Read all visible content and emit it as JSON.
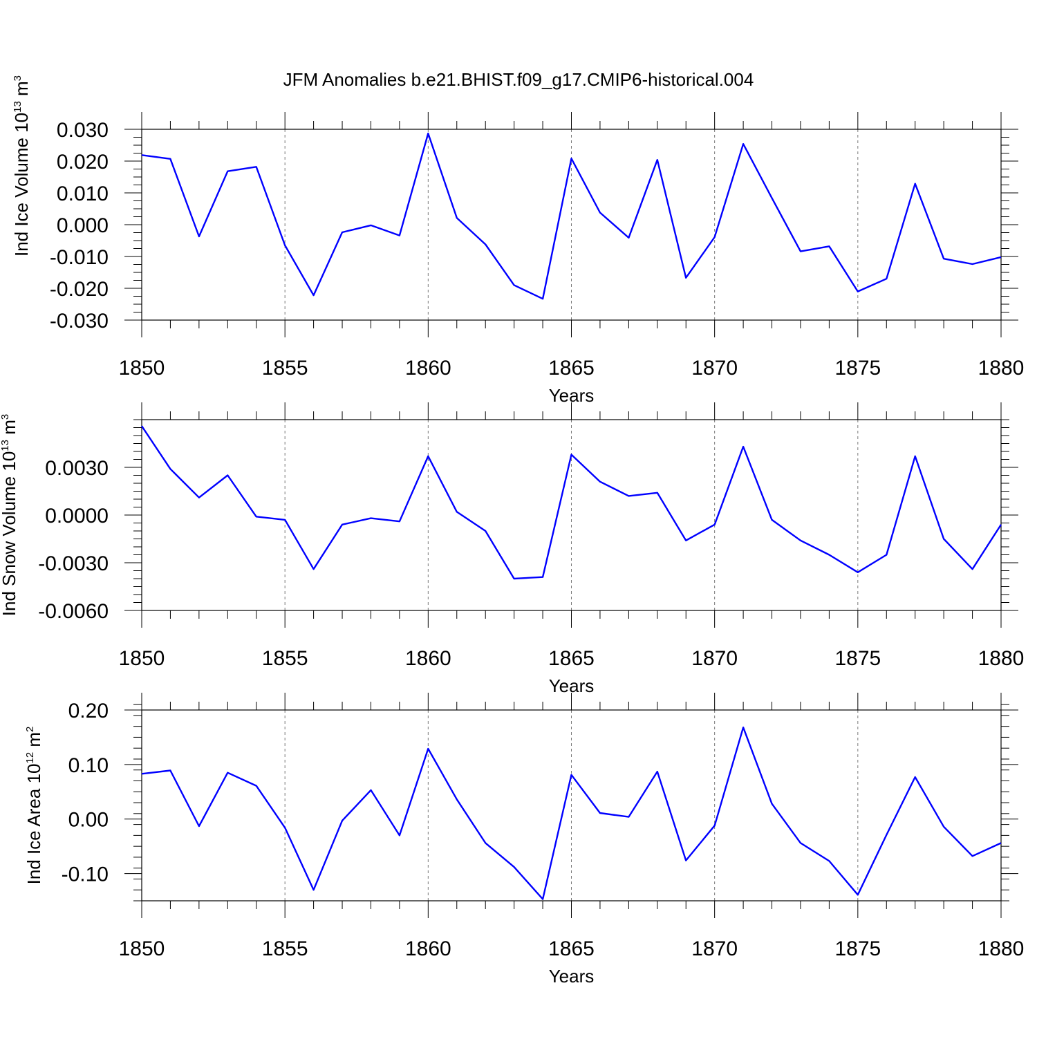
{
  "figure": {
    "title": "JFM Anomalies b.e21.BHIST.f09_g17.CMIP6-historical.004"
  },
  "colors": {
    "series": "#0000ff",
    "axes": "#000000",
    "grid": "#777777"
  },
  "chart_data": [
    {
      "type": "line",
      "id": "ice_volume",
      "xlabel": "Years",
      "ylabel_main": "Ind Ice Volume 10",
      "ylabel_exp": "13",
      "ylabel_unit": " m",
      "ylabel_unit_exp": "3",
      "xlim": [
        1850,
        1880
      ],
      "ylim": [
        -0.03,
        0.03
      ],
      "y_ticks": [
        -0.03,
        -0.02,
        -0.01,
        0.0,
        0.01,
        0.02,
        0.03
      ],
      "y_tick_labels": [
        "-0.030",
        "-0.020",
        "-0.010",
        "0.000",
        "0.010",
        "0.020",
        "0.030"
      ],
      "y_minor_step": 0.0025,
      "x_ticks": [
        1850,
        1855,
        1860,
        1865,
        1870,
        1875,
        1880
      ],
      "x_tick_labels": [
        "1850",
        "1855",
        "1860",
        "1865",
        "1870",
        "1875",
        "1880"
      ],
      "grid": "vertical dashed at major x ticks",
      "x": [
        1850,
        1851,
        1852,
        1853,
        1854,
        1855,
        1856,
        1857,
        1858,
        1859,
        1860,
        1861,
        1862,
        1863,
        1864,
        1865,
        1866,
        1867,
        1868,
        1869,
        1870,
        1871,
        1872,
        1873,
        1874,
        1875,
        1876,
        1877,
        1878,
        1879,
        1880
      ],
      "values": [
        0.0219,
        0.0207,
        -0.0037,
        0.0168,
        0.0182,
        -0.0065,
        -0.0222,
        -0.0024,
        -0.0002,
        -0.0034,
        0.0287,
        0.0021,
        -0.0062,
        -0.019,
        -0.0233,
        0.0208,
        0.0038,
        -0.0041,
        0.0204,
        -0.0167,
        -0.0039,
        0.0254,
        0.0084,
        -0.0084,
        -0.0068,
        -0.021,
        -0.017,
        0.0129,
        -0.0107,
        -0.0124,
        -0.0102
      ]
    },
    {
      "type": "line",
      "id": "snow_volume",
      "xlabel": "Years",
      "ylabel_main": "Ind Snow Volume 10",
      "ylabel_exp": "13",
      "ylabel_unit": " m",
      "ylabel_unit_exp": "3",
      "xlim": [
        1850,
        1880
      ],
      "ylim": [
        -0.006,
        0.006
      ],
      "y_ticks": [
        -0.006,
        -0.003,
        0.0,
        0.003
      ],
      "y_tick_labels": [
        "-0.0060",
        "-0.0030",
        "0.0000",
        "0.0030"
      ],
      "y_minor_step": 0.0005,
      "x_ticks": [
        1850,
        1855,
        1860,
        1865,
        1870,
        1875,
        1880
      ],
      "x_tick_labels": [
        "1850",
        "1855",
        "1860",
        "1865",
        "1870",
        "1875",
        "1880"
      ],
      "grid": "vertical dashed at major x ticks",
      "x": [
        1850,
        1851,
        1852,
        1853,
        1854,
        1855,
        1856,
        1857,
        1858,
        1859,
        1860,
        1861,
        1862,
        1863,
        1864,
        1865,
        1866,
        1867,
        1868,
        1869,
        1870,
        1871,
        1872,
        1873,
        1874,
        1875,
        1876,
        1877,
        1878,
        1879,
        1880
      ],
      "values": [
        0.0056,
        0.0029,
        0.0011,
        0.0025,
        -0.0001,
        -0.0003,
        -0.0034,
        -0.0006,
        -0.0002,
        -0.0004,
        0.0037,
        0.0002,
        -0.001,
        -0.004,
        -0.0039,
        0.0038,
        0.0021,
        0.0012,
        0.0014,
        -0.0016,
        -0.0006,
        0.0043,
        -0.0003,
        -0.0016,
        -0.0025,
        -0.0036,
        -0.0025,
        0.0037,
        -0.0015,
        -0.0034,
        -0.0006
      ]
    },
    {
      "type": "line",
      "id": "ice_area",
      "xlabel": "Years",
      "ylabel_main": "Ind Ice Area 10",
      "ylabel_exp": "12",
      "ylabel_unit": " m",
      "ylabel_unit_exp": "2",
      "xlim": [
        1850,
        1880
      ],
      "ylim": [
        -0.15,
        0.2
      ],
      "y_ticks": [
        -0.1,
        0.0,
        0.1,
        0.2
      ],
      "y_tick_labels": [
        "-0.10",
        "0.00",
        "0.10",
        "0.20"
      ],
      "y_minor_step": 0.02,
      "x_ticks": [
        1850,
        1855,
        1860,
        1865,
        1870,
        1875,
        1880
      ],
      "x_tick_labels": [
        "1850",
        "1855",
        "1860",
        "1865",
        "1870",
        "1875",
        "1880"
      ],
      "grid": "vertical dashed at major x ticks",
      "x": [
        1850,
        1851,
        1852,
        1853,
        1854,
        1855,
        1856,
        1857,
        1858,
        1859,
        1860,
        1861,
        1862,
        1863,
        1864,
        1865,
        1866,
        1867,
        1868,
        1869,
        1870,
        1871,
        1872,
        1873,
        1874,
        1875,
        1876,
        1877,
        1878,
        1879,
        1880
      ],
      "values": [
        0.083,
        0.089,
        -0.013,
        0.085,
        0.061,
        -0.016,
        -0.13,
        -0.003,
        0.053,
        -0.03,
        0.129,
        0.036,
        -0.044,
        -0.088,
        -0.147,
        0.081,
        0.011,
        0.004,
        0.087,
        -0.076,
        -0.012,
        0.168,
        0.028,
        -0.044,
        -0.077,
        -0.139,
        -0.029,
        0.077,
        -0.014,
        -0.068,
        -0.044
      ]
    }
  ]
}
